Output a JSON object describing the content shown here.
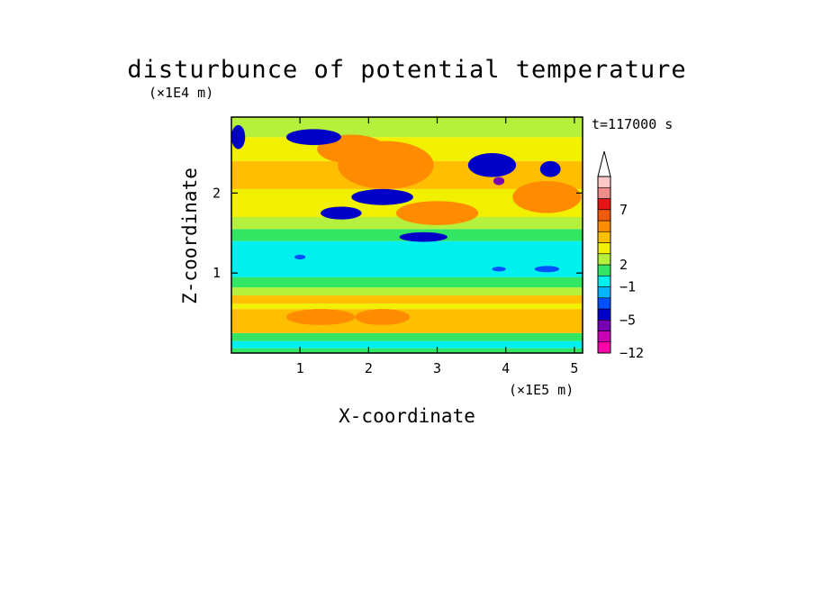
{
  "chart_data": {
    "type": "heatmap",
    "title": "disturbunce of potential temperature",
    "xlabel": "X-coordinate",
    "ylabel": "Z-coordinate",
    "x_unit": "(×1E5 m)",
    "y_unit": "(×1E4 m)",
    "time_label": "t=117000 s",
    "xlim": [
      0,
      5.12
    ],
    "ylim": [
      0,
      2.95
    ],
    "x_ticks": [
      "1",
      "2",
      "3",
      "4",
      "5"
    ],
    "y_ticks": [
      "1",
      "2"
    ],
    "colorbar": {
      "labels": [
        "7",
        "2",
        "−1",
        "−5",
        "−12"
      ],
      "colors": [
        "#ff00aa",
        "#c800b4",
        "#7800b4",
        "#0000c8",
        "#0050ff",
        "#00b4ff",
        "#00f0f0",
        "#32e664",
        "#b4f03c",
        "#f0f000",
        "#ffbe00",
        "#ff8c00",
        "#f05a0a",
        "#e61414",
        "#f08c8c",
        "#ffc8c8"
      ],
      "extend": "max"
    },
    "bands": [
      {
        "z": [
          0.0,
          0.06
        ],
        "color": "#32e664"
      },
      {
        "z": [
          0.06,
          0.15
        ],
        "color": "#00f0f0"
      },
      {
        "z": [
          0.15,
          0.25
        ],
        "color": "#32e664"
      },
      {
        "z": [
          0.25,
          0.55
        ],
        "color": "#ffbe00"
      },
      {
        "z": [
          0.55,
          0.62
        ],
        "color": "#f0f000"
      },
      {
        "z": [
          0.62,
          0.72
        ],
        "color": "#ffbe00"
      },
      {
        "z": [
          0.72,
          0.82
        ],
        "color": "#b4f03c"
      },
      {
        "z": [
          0.82,
          0.95
        ],
        "color": "#32e664"
      },
      {
        "z": [
          0.95,
          1.4
        ],
        "color": "#00f0f0"
      },
      {
        "z": [
          1.4,
          1.55
        ],
        "color": "#32e664"
      },
      {
        "z": [
          1.55,
          1.7
        ],
        "color": "#b4f03c"
      },
      {
        "z": [
          1.7,
          2.05
        ],
        "color": "#f0f000"
      },
      {
        "z": [
          2.05,
          2.4
        ],
        "color": "#ffbe00"
      },
      {
        "z": [
          2.4,
          2.7
        ],
        "color": "#f0f000"
      },
      {
        "z": [
          2.7,
          2.95
        ],
        "color": "#b4f03c"
      }
    ],
    "features": [
      {
        "x": 2.25,
        "z": 2.35,
        "rx": 0.7,
        "rz": 0.3,
        "color": "#ff8c00"
      },
      {
        "x": 1.75,
        "z": 2.55,
        "rx": 0.5,
        "rz": 0.18,
        "color": "#ff8c00"
      },
      {
        "x": 3.0,
        "z": 1.75,
        "rx": 0.6,
        "rz": 0.15,
        "color": "#ff8c00"
      },
      {
        "x": 4.6,
        "z": 1.95,
        "rx": 0.5,
        "rz": 0.2,
        "color": "#ff8c00"
      },
      {
        "x": 1.3,
        "z": 0.45,
        "rx": 0.5,
        "rz": 0.1,
        "color": "#ff8c00"
      },
      {
        "x": 2.2,
        "z": 0.45,
        "rx": 0.4,
        "rz": 0.1,
        "color": "#ff8c00"
      },
      {
        "x": 0.1,
        "z": 2.7,
        "rx": 0.1,
        "rz": 0.15,
        "color": "#0000c8"
      },
      {
        "x": 1.2,
        "z": 2.7,
        "rx": 0.4,
        "rz": 0.1,
        "color": "#0000c8"
      },
      {
        "x": 2.2,
        "z": 1.95,
        "rx": 0.45,
        "rz": 0.1,
        "color": "#0000c8"
      },
      {
        "x": 1.6,
        "z": 1.75,
        "rx": 0.3,
        "rz": 0.08,
        "color": "#0000c8"
      },
      {
        "x": 2.8,
        "z": 1.45,
        "rx": 0.35,
        "rz": 0.06,
        "color": "#0000c8"
      },
      {
        "x": 3.8,
        "z": 2.35,
        "rx": 0.35,
        "rz": 0.15,
        "color": "#0000c8"
      },
      {
        "x": 4.65,
        "z": 2.3,
        "rx": 0.15,
        "rz": 0.1,
        "color": "#0000c8"
      },
      {
        "x": 3.9,
        "z": 2.15,
        "rx": 0.08,
        "rz": 0.05,
        "color": "#7800b4"
      },
      {
        "x": 4.6,
        "z": 1.05,
        "rx": 0.18,
        "rz": 0.04,
        "color": "#0050ff"
      },
      {
        "x": 3.9,
        "z": 1.05,
        "rx": 0.1,
        "rz": 0.03,
        "color": "#0050ff"
      },
      {
        "x": 1.0,
        "z": 1.2,
        "rx": 0.08,
        "rz": 0.03,
        "color": "#0050ff"
      }
    ]
  }
}
